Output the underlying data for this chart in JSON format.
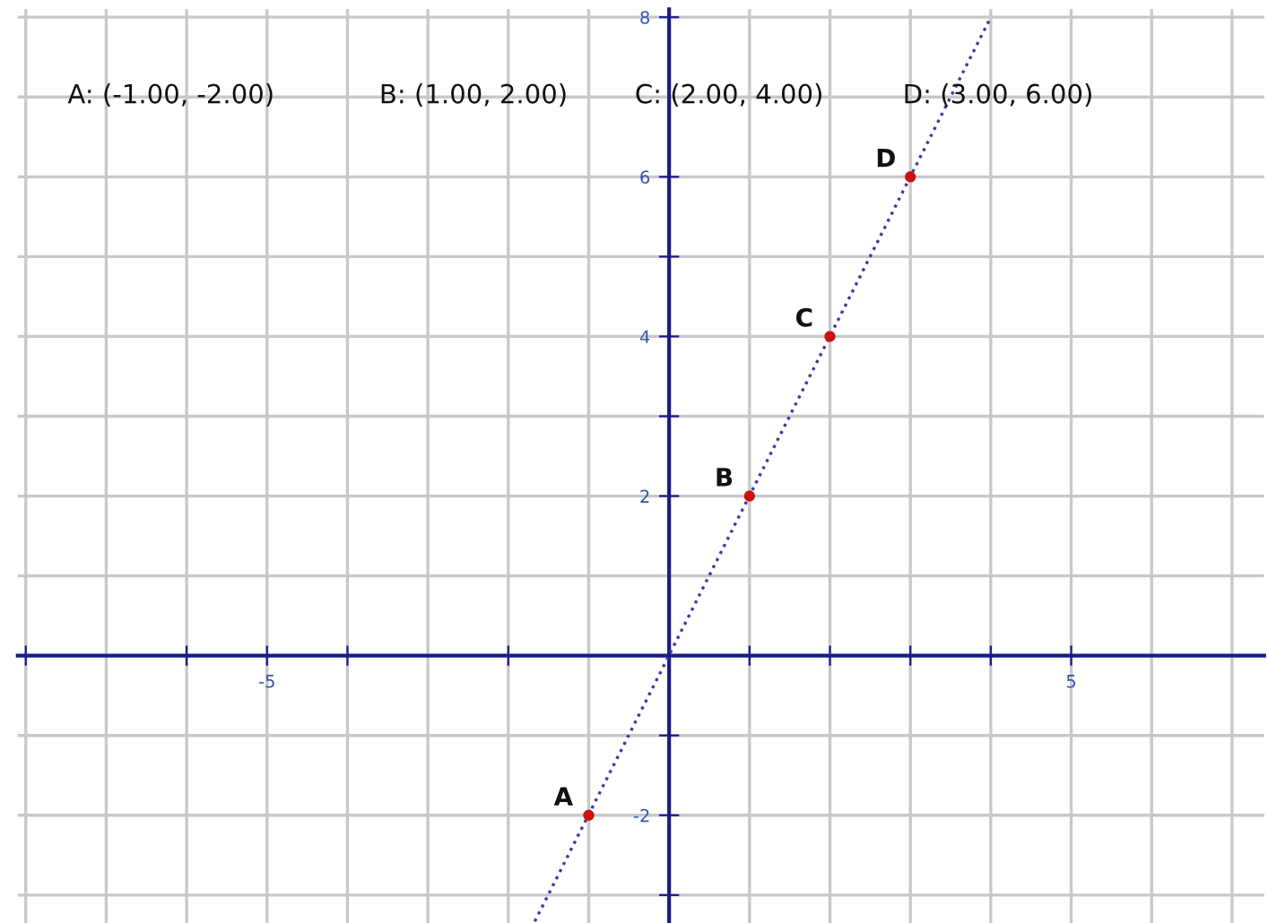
{
  "chart_data": {
    "type": "scatter",
    "series": [
      {
        "type": "line",
        "color": "#3a3aa8",
        "line_style": "dotted",
        "marker": "none",
        "x": [
          -1.67,
          4.0
        ],
        "values": [
          -3.33,
          8.0
        ]
      },
      {
        "color": "#cc1111",
        "marker": "circle",
        "x": [
          -1,
          1,
          2,
          3
        ],
        "values": [
          -2,
          2,
          4,
          6
        ]
      }
    ],
    "annotations": [
      "A: (-1.00, -2.00)",
      "B: (1.00, 2.00)",
      "C: (2.00, 4.00)",
      "D: (3.00, 6.00)",
      {
        "text": "A",
        "x": -1,
        "y": -2
      },
      {
        "text": "B",
        "x": 1,
        "y": 2
      },
      {
        "text": "C",
        "x": 2,
        "y": 4
      },
      {
        "text": "D",
        "x": 3,
        "y": 6
      }
    ],
    "xlim": [
      -8.1,
      7.4
    ],
    "ylim": [
      -3.35,
      8.1
    ],
    "xticks": [
      {
        "value": -8,
        "label": null
      },
      {
        "value": -6,
        "label": null
      },
      {
        "value": -5,
        "label": "-5"
      },
      {
        "value": -4,
        "label": null
      },
      {
        "value": -2,
        "label": null
      },
      {
        "value": 1,
        "label": null
      },
      {
        "value": 2,
        "label": null
      },
      {
        "value": 3,
        "label": null
      },
      {
        "value": 4,
        "label": null
      },
      5
    ],
    "yticks": [
      {
        "value": -3,
        "label": null
      },
      -2,
      {
        "value": -1,
        "label": null
      },
      2,
      {
        "value": 3,
        "label": null
      },
      4,
      {
        "value": 5,
        "label": null
      },
      6,
      8
    ],
    "grid": true
  }
}
